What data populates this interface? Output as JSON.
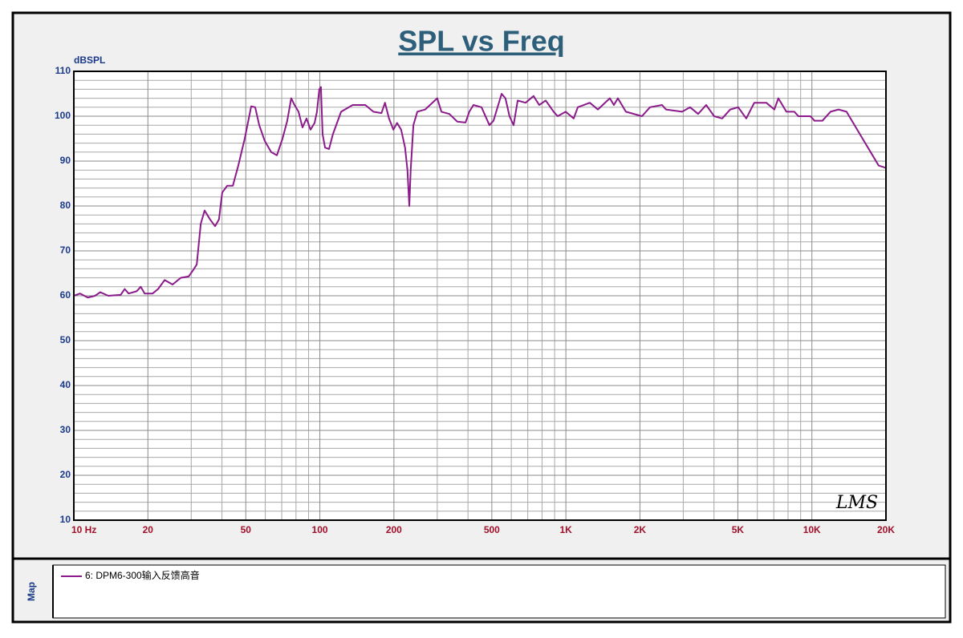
{
  "chart_data": {
    "type": "line",
    "title": "SPL vs Freq",
    "y_label": "dBSPL",
    "annotation": "LMS",
    "legend_title": "Map",
    "xscale": "log",
    "grid": true,
    "xlim": [
      10,
      20000
    ],
    "ylim": [
      10,
      110
    ],
    "xticks": [
      {
        "value": 10,
        "label": "10 Hz"
      },
      20,
      50,
      100,
      200,
      500,
      {
        "value": 1000,
        "label": "1K"
      },
      {
        "value": 2000,
        "label": "2K"
      },
      {
        "value": 5000,
        "label": "5K"
      },
      {
        "value": 10000,
        "label": "10K"
      },
      {
        "value": 20000,
        "label": "20K"
      }
    ],
    "x_minor_grid": [
      30,
      40,
      60,
      70,
      80,
      90,
      300,
      400,
      600,
      700,
      800,
      900,
      3000,
      4000,
      6000,
      7000,
      8000,
      9000
    ],
    "yticks": [
      10,
      20,
      30,
      40,
      50,
      60,
      70,
      80,
      90,
      100,
      110
    ],
    "y_minor_grid": [
      12,
      14,
      16,
      18,
      22,
      24,
      26,
      28,
      32,
      34,
      36,
      38,
      42,
      44,
      46,
      48,
      52,
      54,
      56,
      58,
      62,
      64,
      66,
      68,
      72,
      74,
      76,
      78,
      82,
      84,
      86,
      88,
      92,
      94,
      96,
      98,
      102,
      104,
      106,
      108
    ],
    "x": [
      10,
      10.6,
      11.4,
      12.2,
      12.8,
      13.8,
      15.5,
      16.1,
      16.7,
      18.0,
      18.7,
      19.4,
      20.9,
      22.0,
      23.4,
      25.2,
      27.2,
      29.3,
      30.8,
      31.6,
      32.8,
      34.0,
      35.8,
      37.5,
      38.9,
      40.1,
      42.0,
      44.3,
      46.6,
      49.5,
      52.6,
      54.6,
      56.7,
      59.7,
      63.4,
      66.9,
      70.5,
      73.7,
      76.5,
      78.9,
      81.9,
      85.0,
      88.3,
      91.6,
      95.2,
      97.3,
      99.5,
      101,
      102.6,
      105,
      109,
      113,
      122,
      136,
      153,
      165,
      178,
      184,
      191,
      199,
      206,
      214,
      222,
      227,
      231,
      234,
      240,
      249,
      268,
      300,
      312,
      336,
      362,
      391,
      405,
      421,
      454,
      489,
      508,
      548,
      568,
      590,
      613,
      637,
      686,
      739,
      779,
      828,
      892,
      926,
      998,
      1076,
      1118,
      1251,
      1349,
      1509,
      1567,
      1627,
      1754,
      2038,
      2197,
      2459,
      2553,
      2968,
      3199,
      3448,
      3717,
      4006,
      4319,
      4656,
      5018,
      5410,
      5831,
      6526,
      7038,
      7305,
      7875,
      8489,
      8812,
      9865,
      10240,
      11040,
      11900,
      12830,
      13830,
      14910,
      16070,
      17330,
      18680,
      20000
    ],
    "series": [
      {
        "name": "6: DPM6-300输入反馈高音",
        "color": "#8b1a8b",
        "values": [
          60,
          60.5,
          59.6,
          60,
          60.8,
          60,
          60.2,
          61.5,
          60.5,
          61,
          62,
          60.5,
          60.5,
          61.5,
          63.5,
          62.5,
          64,
          64.3,
          66,
          67,
          76,
          79,
          77,
          75.5,
          77,
          83,
          84.5,
          84.5,
          89,
          95,
          102.2,
          102,
          98,
          94.5,
          92,
          91.3,
          95,
          99,
          104,
          102.5,
          101,
          97.5,
          99.5,
          97,
          98.5,
          101,
          106,
          106.5,
          96,
          93,
          92.7,
          96,
          101,
          102.5,
          102.5,
          101,
          100.7,
          103,
          99.5,
          97,
          98.5,
          97,
          93,
          88,
          80,
          88,
          98,
          101,
          101.5,
          104,
          101,
          100.5,
          98.8,
          98.6,
          101,
          102.5,
          102,
          98,
          99,
          105,
          104,
          100,
          98,
          103.5,
          103,
          104.5,
          102.5,
          103.5,
          101,
          100,
          101,
          99.5,
          102,
          103,
          101.5,
          104,
          102.5,
          104,
          101,
          100,
          102,
          102.5,
          101.5,
          101,
          102,
          100.5,
          102.5,
          100,
          99.5,
          101.5,
          102,
          99.5,
          103,
          103,
          101.5,
          104,
          101,
          101,
          100,
          100,
          99,
          99,
          101,
          101.5,
          101,
          98,
          95,
          92,
          89,
          88.5
        ]
      }
    ]
  }
}
